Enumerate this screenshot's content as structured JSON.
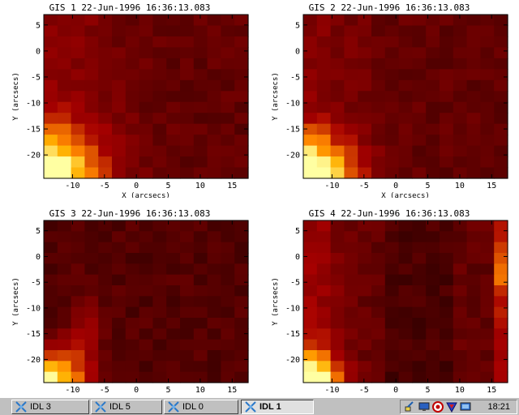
{
  "panels": [
    {
      "title": "GIS 1 22-Jun-1996 16:36:13.083",
      "xlabel": "X (arcsecs)",
      "ylabel": "Y (arcsecs)",
      "hotspot": "soft"
    },
    {
      "title": "GIS 2 22-Jun-1996 16:36:13.083",
      "xlabel": "X (arcsecs)",
      "ylabel": "Y (arcsecs)",
      "hotspot": "sharp"
    },
    {
      "title": "GIS 3 22-Jun-1996 16:36:13.083",
      "xlabel": "",
      "ylabel": "Y (arcsecs)",
      "hotspot": "mid"
    },
    {
      "title": "GIS 4 22-Jun-1996 16:36:13.083",
      "xlabel": "",
      "ylabel": "Y (arcsecs)",
      "hotspot": "right-band"
    }
  ],
  "axes": {
    "x_range": [
      -14.5,
      17.5
    ],
    "y_range": [
      -24.5,
      7.0
    ],
    "x_ticks": [
      "-10",
      "-5",
      "0",
      "5",
      "10",
      "15"
    ],
    "x_tick_values": [
      -10,
      -5,
      0,
      5,
      10,
      15
    ],
    "y_ticks": [
      "5",
      "0",
      "-5",
      "-10",
      "-15",
      "-20"
    ],
    "y_tick_values": [
      5,
      0,
      -5,
      -10,
      -15,
      -20
    ],
    "grid_cols": 15,
    "grid_rows": 15
  },
  "colormap": "red-temperature",
  "taskbar": {
    "tasks": [
      {
        "label": "IDL 3",
        "active": false
      },
      {
        "label": "IDL 5",
        "active": false
      },
      {
        "label": "IDL 0",
        "active": false
      },
      {
        "label": "IDL 1",
        "active": true
      }
    ],
    "tray_icons": [
      "network-icon",
      "monitor-icon",
      "record-icon",
      "shield-icon",
      "display-icon"
    ],
    "clock": "18:21"
  }
}
